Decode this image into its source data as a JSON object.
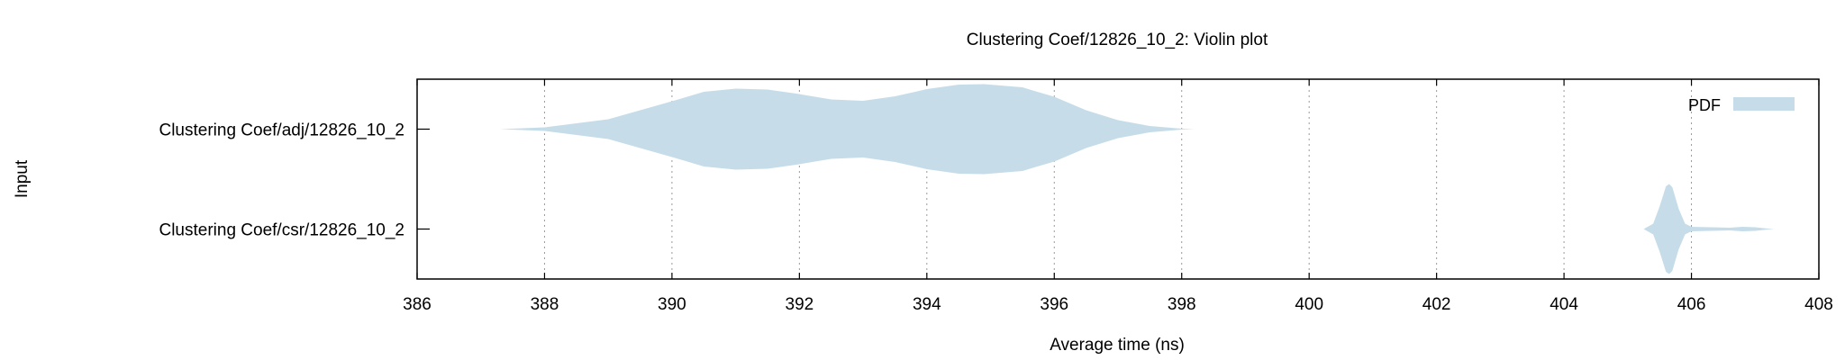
{
  "chart_data": {
    "type": "violin",
    "title": "Clustering Coef/12826_10_2: Violin plot",
    "xlabel": "Average time (ns)",
    "ylabel": "Input",
    "xlim": [
      386,
      408
    ],
    "x_ticks": [
      386,
      388,
      390,
      392,
      394,
      396,
      398,
      400,
      402,
      404,
      406,
      408
    ],
    "x_tick_labels": [
      "386",
      "388",
      "390",
      "392",
      "394",
      "396",
      "398",
      "400",
      "402",
      "404",
      "406",
      "408"
    ],
    "grid": "vertical dotted",
    "legend": {
      "position": "top-right",
      "entries": [
        {
          "label": "PDF",
          "color": "#c6dde9"
        }
      ]
    },
    "categories": [
      "Clustering Coef/adj/12826_10_2",
      "Clustering Coef/csr/12826_10_2"
    ],
    "series": [
      {
        "category": "Clustering Coef/adj/12826_10_2",
        "color": "#c6dde9",
        "density": [
          [
            387.3,
            0.0
          ],
          [
            388.0,
            0.04
          ],
          [
            389.0,
            0.22
          ],
          [
            390.0,
            0.62
          ],
          [
            390.5,
            0.83
          ],
          [
            391.0,
            0.9
          ],
          [
            391.5,
            0.88
          ],
          [
            392.0,
            0.78
          ],
          [
            392.5,
            0.66
          ],
          [
            393.0,
            0.63
          ],
          [
            393.5,
            0.73
          ],
          [
            394.0,
            0.89
          ],
          [
            394.5,
            0.99
          ],
          [
            394.9,
            1.0
          ],
          [
            395.5,
            0.93
          ],
          [
            396.0,
            0.72
          ],
          [
            396.5,
            0.42
          ],
          [
            397.0,
            0.2
          ],
          [
            397.5,
            0.07
          ],
          [
            398.0,
            0.01
          ],
          [
            398.2,
            0.0
          ]
        ]
      },
      {
        "category": "Clustering Coef/csr/12826_10_2",
        "color": "#c6dde9",
        "density": [
          [
            405.25,
            0.0
          ],
          [
            405.4,
            0.12
          ],
          [
            405.5,
            0.5
          ],
          [
            405.6,
            0.95
          ],
          [
            405.65,
            1.0
          ],
          [
            405.7,
            0.93
          ],
          [
            405.8,
            0.45
          ],
          [
            405.9,
            0.12
          ],
          [
            406.0,
            0.05
          ],
          [
            406.3,
            0.04
          ],
          [
            406.6,
            0.03
          ],
          [
            406.8,
            0.05
          ],
          [
            407.0,
            0.04
          ],
          [
            407.2,
            0.01
          ],
          [
            407.3,
            0.0
          ]
        ]
      }
    ]
  }
}
